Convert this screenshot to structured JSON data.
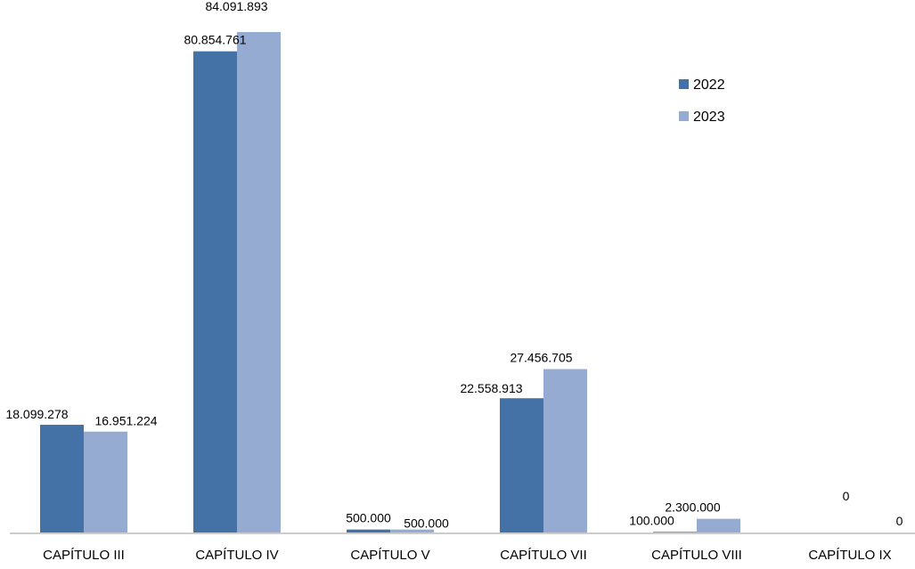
{
  "chart_data": {
    "type": "bar",
    "title": "",
    "xlabel": "",
    "ylabel": "",
    "categories": [
      "CAPÍTULO III",
      "CAPÍTULO IV",
      "CAPÍTULO V",
      "CAPÍTULO VII",
      "CAPÍTULO VIII",
      "CAPÍTULO IX"
    ],
    "series": [
      {
        "name": "2022",
        "color": "#4472A6",
        "values": [
          18099278,
          80854761,
          500000,
          22558913,
          100000,
          0
        ],
        "labels": [
          "18.099.278",
          "80.854.761",
          "500.000",
          "22.558.913",
          "100.000",
          "0"
        ]
      },
      {
        "name": "2023",
        "color": "#95ABD2",
        "values": [
          16951224,
          84091893,
          500000,
          27456705,
          2300000,
          0
        ],
        "labels": [
          "16.951.224",
          "84.091.893",
          "500.000",
          "27.456.705",
          "2.300.000",
          "0"
        ]
      }
    ],
    "ylim": [
      0,
      84091893
    ],
    "grid": false,
    "y_axis_shown": false,
    "legend_position": "top-right"
  }
}
